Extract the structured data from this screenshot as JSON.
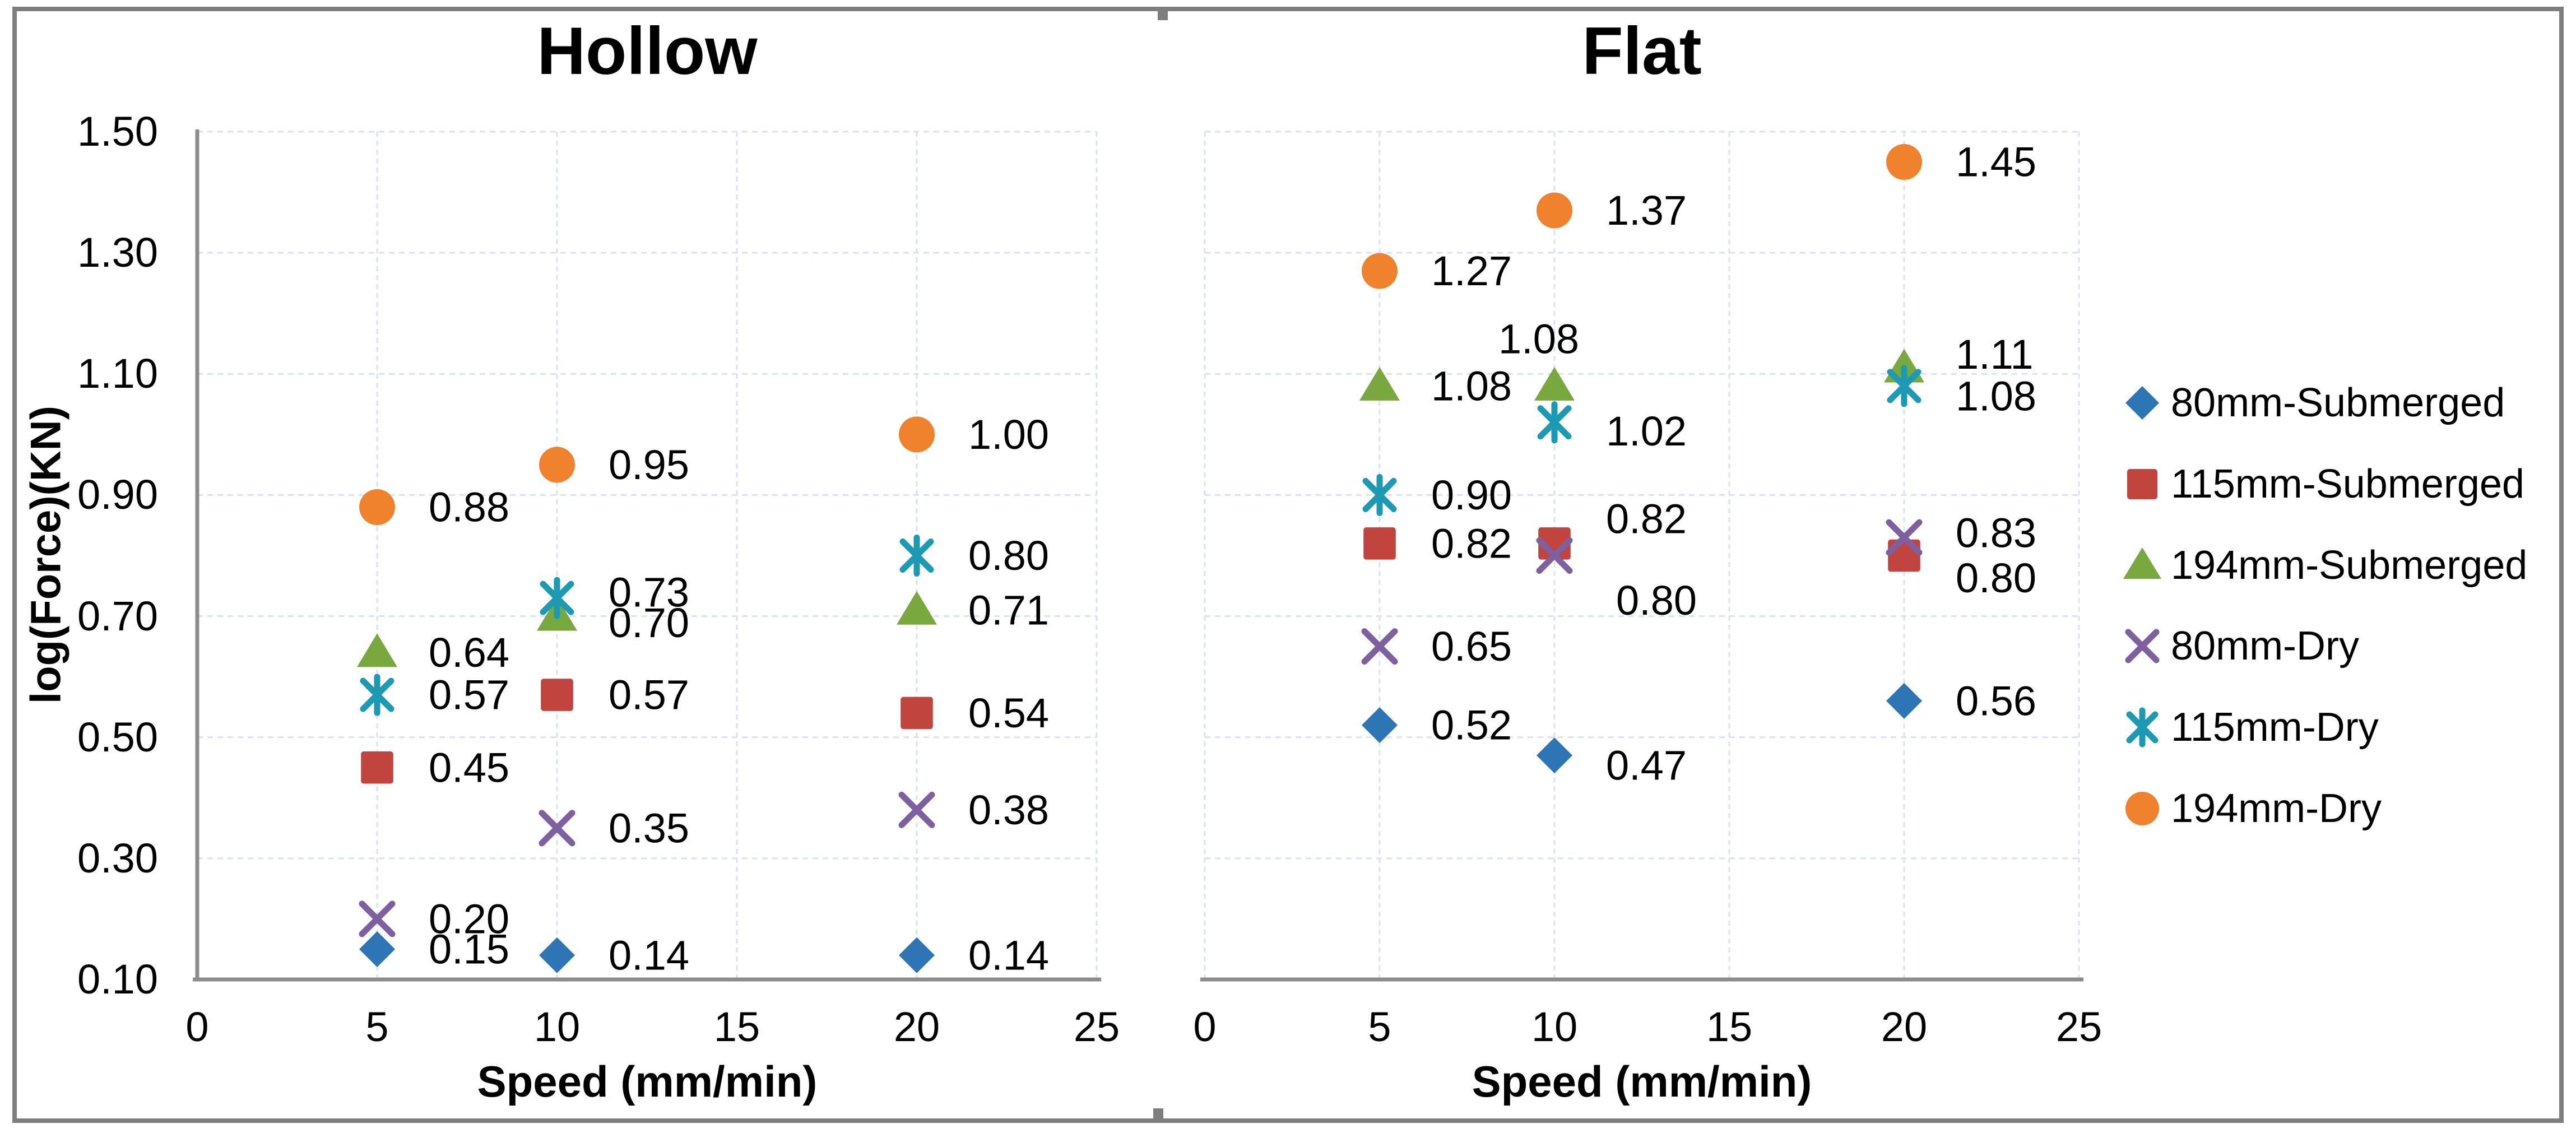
{
  "figure": {
    "border_color": "#7E7E7E",
    "axis_color": "#8C8C8C",
    "gridline_color": "#D9E1F2",
    "background": "#FFFFFF",
    "text_color": "#000000"
  },
  "chart_data": [
    {
      "type": "scatter",
      "title": "Hollow",
      "xlabel": "Speed (mm/min)",
      "ylabel": "log(Force)(KN)",
      "x": [
        5,
        10,
        20
      ],
      "xlim": [
        0,
        25
      ],
      "ylim": [
        0.1,
        1.5
      ],
      "x_ticks": [
        0,
        5,
        10,
        15,
        20,
        25
      ],
      "y_ticks": [
        0.1,
        0.3,
        0.5,
        0.7,
        0.9,
        1.1,
        1.3,
        1.5
      ],
      "grid": true,
      "data_labels": true,
      "show_y_tick_labels": true,
      "series": [
        {
          "name": "80mm-Submerged",
          "marker": "diamond",
          "color": "#2E75B6",
          "values": [
            0.15,
            0.14,
            0.14
          ]
        },
        {
          "name": "115mm-Submerged",
          "marker": "square",
          "color": "#C1443E",
          "values": [
            0.45,
            0.57,
            0.54
          ]
        },
        {
          "name": "194mm-Submerged",
          "marker": "triangle",
          "color": "#79A83E",
          "values": [
            0.64,
            0.7,
            0.71
          ]
        },
        {
          "name": "80mm-Dry",
          "marker": "x",
          "color": "#7D60A0",
          "values": [
            0.2,
            0.35,
            0.38
          ]
        },
        {
          "name": "115mm-Dry",
          "marker": "asterisk",
          "color": "#1C9AB3",
          "values": [
            0.57,
            0.73,
            0.8
          ]
        },
        {
          "name": "194mm-Dry",
          "marker": "circle",
          "color": "#F0822D",
          "values": [
            0.88,
            0.95,
            1.0
          ]
        }
      ]
    },
    {
      "type": "scatter",
      "title": "Flat",
      "xlabel": "Speed (mm/min)",
      "ylabel": "log(Force)(KN)",
      "x": [
        5,
        10,
        20
      ],
      "xlim": [
        0,
        25
      ],
      "ylim": [
        0.1,
        1.5
      ],
      "x_ticks": [
        0,
        5,
        10,
        15,
        20,
        25
      ],
      "y_ticks": [
        0.1,
        0.3,
        0.5,
        0.7,
        0.9,
        1.1,
        1.3,
        1.5
      ],
      "grid": true,
      "data_labels": true,
      "show_y_tick_labels": false,
      "series": [
        {
          "name": "80mm-Submerged",
          "marker": "diamond",
          "color": "#2E75B6",
          "values": [
            0.52,
            0.47,
            0.56
          ]
        },
        {
          "name": "115mm-Submerged",
          "marker": "square",
          "color": "#C1443E",
          "values": [
            0.82,
            0.82,
            0.8
          ]
        },
        {
          "name": "194mm-Submerged",
          "marker": "triangle",
          "color": "#79A83E",
          "values": [
            1.08,
            1.08,
            1.11
          ]
        },
        {
          "name": "80mm-Dry",
          "marker": "x",
          "color": "#7D60A0",
          "values": [
            0.65,
            0.8,
            0.83
          ]
        },
        {
          "name": "115mm-Dry",
          "marker": "asterisk",
          "color": "#1C9AB3",
          "values": [
            0.9,
            1.02,
            1.08
          ]
        },
        {
          "name": "194mm-Dry",
          "marker": "circle",
          "color": "#F0822D",
          "values": [
            1.27,
            1.37,
            1.45
          ]
        }
      ]
    }
  ],
  "legend": {
    "position": "right",
    "items": [
      {
        "label": "80mm-Submerged",
        "marker": "diamond",
        "color": "#2E75B6"
      },
      {
        "label": "115mm-Submerged",
        "marker": "square",
        "color": "#C1443E"
      },
      {
        "label": "194mm-Submerged",
        "marker": "triangle",
        "color": "#79A83E"
      },
      {
        "label": "80mm-Dry",
        "marker": "x",
        "color": "#7D60A0"
      },
      {
        "label": "115mm-Dry",
        "marker": "asterisk",
        "color": "#1C9AB3"
      },
      {
        "label": "194mm-Dry",
        "marker": "circle",
        "color": "#F0822D"
      }
    ]
  }
}
